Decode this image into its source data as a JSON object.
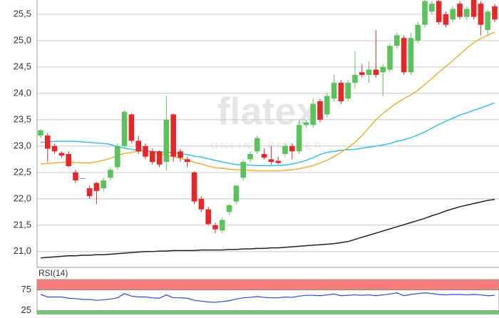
{
  "chart_data": [
    {
      "type": "candlestick",
      "watermark": "flatex",
      "watermark_sub": "ONLINE BROKER",
      "ylim": [
        20.7,
        25.77
      ],
      "yticks": [
        {
          "value": 21.0,
          "label": "21,0"
        },
        {
          "value": 21.5,
          "label": "21,5"
        },
        {
          "value": 22.0,
          "label": "22,0"
        },
        {
          "value": 22.5,
          "label": "22,5"
        },
        {
          "value": 23.0,
          "label": "23,0"
        },
        {
          "value": 23.5,
          "label": "23,5"
        },
        {
          "value": 24.0,
          "label": "24,0"
        },
        {
          "value": 24.5,
          "label": "24,5"
        },
        {
          "value": 25.0,
          "label": "25,0"
        },
        {
          "value": 25.5,
          "label": "25,5"
        }
      ],
      "grid": true,
      "up_color": "#5cc25c",
      "down_color": "#e8262a",
      "open": [
        23.2,
        23.2,
        23.0,
        22.87,
        22.85,
        22.5,
        22.39,
        22.2,
        22.3,
        22.2,
        22.4,
        22.6,
        23.0,
        23.6,
        23.1,
        23.0,
        22.9,
        22.9,
        22.7,
        23.6,
        22.9,
        22.75,
        22.5,
        22.0,
        21.8,
        21.5,
        21.4,
        21.75,
        21.95,
        22.4,
        22.75,
        22.9,
        22.85,
        22.75,
        22.72,
        22.85,
        23.0,
        22.9,
        23.4,
        23.4,
        23.85,
        23.6,
        23.9,
        24.2,
        23.9,
        24.2,
        24.4,
        24.35,
        24.45,
        24.4,
        24.45,
        24.9,
        25.05,
        24.4,
        25.0,
        25.3,
        25.55,
        25.75,
        25.5,
        25.4,
        25.7,
        25.45,
        25.8,
        25.7,
        25.2,
        25.65
      ],
      "high": [
        23.32,
        23.25,
        23.05,
        22.9,
        22.9,
        22.55,
        22.4,
        22.25,
        22.32,
        22.4,
        22.6,
        23.05,
        23.68,
        23.62,
        23.2,
        23.05,
        22.95,
        22.92,
        23.95,
        23.62,
        22.95,
        22.8,
        22.52,
        22.05,
        21.85,
        21.55,
        21.65,
        21.9,
        22.25,
        22.75,
        22.9,
        23.2,
        22.95,
        23.0,
        22.8,
        23.05,
        23.05,
        23.5,
        23.5,
        23.9,
        23.9,
        24.0,
        24.35,
        24.25,
        24.25,
        24.8,
        24.55,
        24.6,
        25.2,
        24.55,
        24.95,
        25.15,
        25.1,
        25.15,
        25.35,
        25.8,
        25.75,
        25.8,
        25.55,
        25.65,
        25.75,
        25.65,
        25.85,
        25.75,
        25.6,
        25.7
      ],
      "low": [
        23.15,
        22.7,
        22.85,
        22.78,
        22.6,
        22.3,
        22.38,
        22.0,
        21.9,
        22.15,
        22.35,
        22.55,
        22.95,
        23.05,
        22.85,
        22.75,
        22.65,
        22.6,
        22.55,
        22.7,
        22.7,
        22.6,
        21.9,
        21.75,
        21.5,
        21.35,
        21.35,
        21.7,
        21.9,
        22.35,
        22.7,
        22.85,
        22.75,
        22.65,
        22.65,
        22.8,
        22.75,
        22.85,
        23.35,
        23.35,
        23.45,
        23.55,
        23.85,
        23.8,
        23.85,
        24.1,
        24.3,
        24.2,
        24.3,
        23.95,
        24.4,
        24.85,
        24.35,
        24.35,
        24.95,
        25.25,
        25.5,
        25.3,
        25.25,
        25.35,
        25.4,
        25.4,
        25.4,
        25.1,
        25.1,
        25.35
      ],
      "close": [
        23.3,
        22.95,
        22.9,
        22.82,
        22.62,
        22.35,
        22.39,
        22.05,
        22.15,
        22.35,
        22.55,
        23.0,
        23.65,
        23.1,
        22.9,
        22.8,
        22.7,
        22.65,
        23.5,
        22.8,
        22.78,
        22.7,
        21.95,
        21.8,
        21.52,
        21.42,
        21.6,
        21.88,
        22.25,
        22.7,
        22.85,
        23.15,
        22.78,
        22.7,
        22.68,
        23.0,
        22.9,
        23.4,
        23.45,
        23.8,
        23.5,
        23.95,
        24.2,
        23.85,
        24.2,
        24.35,
        24.35,
        24.45,
        24.35,
        24.5,
        24.9,
        25.1,
        24.4,
        25.05,
        25.3,
        25.75,
        25.7,
        25.35,
        25.3,
        25.6,
        25.45,
        25.6,
        25.45,
        25.3,
        25.55,
        25.4
      ],
      "series": [
        {
          "color": "#33c3e8",
          "values": [
            23.07,
            23.08,
            23.09,
            23.09,
            23.09,
            23.09,
            23.08,
            23.07,
            23.06,
            23.05,
            23.03,
            22.99,
            22.96,
            22.94,
            22.92,
            22.91,
            22.9,
            22.89,
            22.88,
            22.87,
            22.86,
            22.84,
            22.81,
            22.79,
            22.76,
            22.73,
            22.7,
            22.67,
            22.65,
            22.64,
            22.64,
            22.63,
            22.63,
            22.63,
            22.63,
            22.64,
            22.66,
            22.69,
            22.73,
            22.78,
            22.84,
            22.88,
            22.9,
            22.92,
            22.93,
            22.94,
            22.96,
            22.98,
            23.0,
            23.02,
            23.05,
            23.09,
            23.12,
            23.16,
            23.21,
            23.27,
            23.34,
            23.41,
            23.47,
            23.53,
            23.59,
            23.63,
            23.68,
            23.72,
            23.77,
            23.82
          ]
        },
        {
          "color": "#f0b030",
          "values": [
            22.66,
            22.67,
            22.68,
            22.69,
            22.7,
            22.69,
            22.68,
            22.68,
            22.7,
            22.73,
            22.77,
            22.82,
            22.86,
            22.88,
            22.9,
            22.91,
            22.88,
            22.85,
            22.83,
            22.8,
            22.77,
            22.73,
            22.69,
            22.66,
            22.62,
            22.59,
            22.58,
            22.56,
            22.55,
            22.55,
            22.54,
            22.53,
            22.53,
            22.53,
            22.53,
            22.54,
            22.55,
            22.57,
            22.6,
            22.63,
            22.68,
            22.73,
            22.8,
            22.88,
            22.97,
            23.07,
            23.2,
            23.35,
            23.5,
            23.62,
            23.72,
            23.82,
            23.9,
            23.97,
            24.06,
            24.17,
            24.28,
            24.4,
            24.51,
            24.62,
            24.74,
            24.86,
            24.96,
            25.04,
            25.1,
            25.16
          ]
        },
        {
          "color": "#222222",
          "values": [
            20.88,
            20.89,
            20.9,
            20.91,
            20.92,
            20.92,
            20.93,
            20.93,
            20.94,
            20.94,
            20.95,
            20.96,
            20.97,
            20.98,
            20.99,
            21.0,
            21.0,
            21.01,
            21.01,
            21.02,
            21.02,
            21.02,
            21.02,
            21.03,
            21.03,
            21.03,
            21.03,
            21.04,
            21.04,
            21.05,
            21.05,
            21.06,
            21.06,
            21.07,
            21.07,
            21.08,
            21.09,
            21.1,
            21.11,
            21.12,
            21.13,
            21.14,
            21.15,
            21.17,
            21.19,
            21.23,
            21.27,
            21.31,
            21.35,
            21.39,
            21.43,
            21.47,
            21.51,
            21.55,
            21.59,
            21.63,
            21.68,
            21.72,
            21.77,
            21.81,
            21.85,
            21.88,
            21.91,
            21.94,
            21.97,
            21.99
          ]
        }
      ]
    },
    {
      "type": "line",
      "title": "RSI(14)",
      "ylim": [
        16,
        100
      ],
      "yticks": [
        25,
        75
      ],
      "upper_band_color": "#f47c7c",
      "lower_band_color": "#6ccf6c",
      "series": [
        {
          "color": "#3344dd",
          "values": [
            64,
            58,
            58,
            58,
            55,
            54,
            52,
            52,
            50,
            51,
            53,
            56,
            66,
            60,
            58,
            58,
            56,
            55,
            63,
            56,
            56,
            55,
            50,
            48,
            46,
            45,
            47,
            49,
            53,
            56,
            57,
            59,
            57,
            56,
            56,
            58,
            57,
            60,
            62,
            62,
            61,
            63,
            65,
            61,
            62,
            63,
            62,
            63,
            61,
            63,
            65,
            68,
            61,
            64,
            66,
            68,
            66,
            64,
            63,
            64,
            64,
            63,
            64,
            63,
            61,
            62
          ]
        }
      ]
    }
  ]
}
